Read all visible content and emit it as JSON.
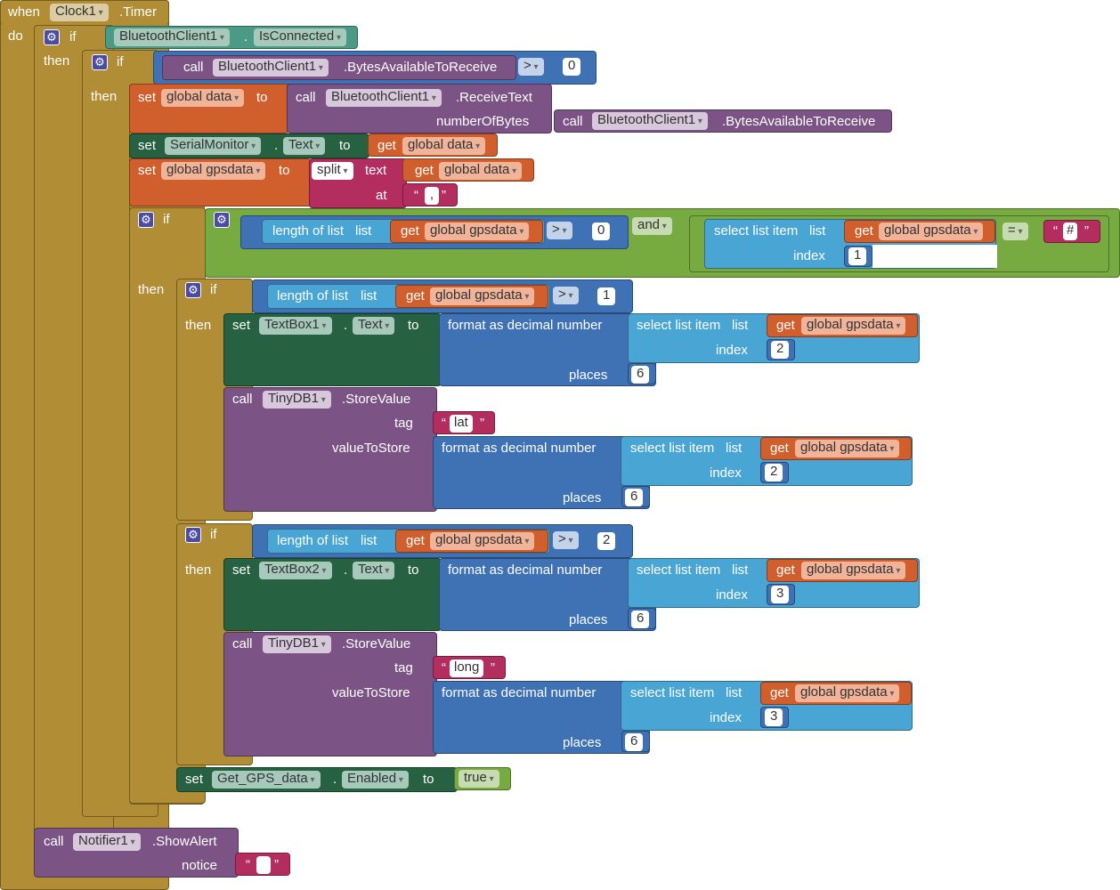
{
  "event": {
    "when": "when",
    "component": "Clock1",
    "event_name": ".Timer",
    "do": "do"
  },
  "kw": {
    "if": "if",
    "then": "then",
    "set": "set",
    "get": "get",
    "to": "to",
    "call": "call",
    "and": "and",
    "dot": ".",
    "gt": ">",
    "eq": "=",
    "length_of_list": "length of list",
    "list": "list",
    "select_list_item": "select list item",
    "index": "index",
    "places": "places",
    "format_decimal": "format as decimal number",
    "tag": "tag",
    "value_to_store": "valueToStore",
    "split": "split",
    "text": "text",
    "at": "at",
    "number_of_bytes": "numberOfBytes",
    "notice": "notice",
    "quote_open": "“",
    "quote_close": "”"
  },
  "bt": {
    "component": "BluetoothClient1",
    "is_connected": "IsConnected",
    "bytes_available": ".BytesAvailableToReceive",
    "receive_text": ".ReceiveText",
    "zero": "0"
  },
  "vars": {
    "data": "global data",
    "gpsdata": "global gpsdata"
  },
  "serial": {
    "component": "SerialMonitor",
    "prop": "Text"
  },
  "split_sep": ",",
  "cond1": {
    "zero": "0",
    "hash": "#",
    "one": "1"
  },
  "block1": {
    "len": "1",
    "textbox": "TextBox1",
    "prop": "Text",
    "index": "2",
    "places": "6",
    "db": "TinyDB1",
    "store": ".StoreValue",
    "tag": "lat",
    "index2": "2",
    "places2": "6"
  },
  "block2": {
    "len": "2",
    "textbox": "TextBox2",
    "prop": "Text",
    "index": "3",
    "places": "6",
    "db": "TinyDB1",
    "store": ".StoreValue",
    "tag": "long",
    "index2": "3",
    "places2": "6"
  },
  "gps": {
    "component": "Get_GPS_data",
    "prop": "Enabled",
    "value": "true"
  },
  "notifier": {
    "component": "Notifier1",
    "method": ".ShowAlert"
  },
  "colors": {
    "control": "#b18e35",
    "bluetooth": "#4a9a85",
    "call": "#7c5385",
    "variable": "#d05f2d",
    "list": "#49a6d4",
    "math": "#3f71b5",
    "logic": "#77ab41",
    "text": "#b32d5e",
    "setter": "#266141"
  }
}
